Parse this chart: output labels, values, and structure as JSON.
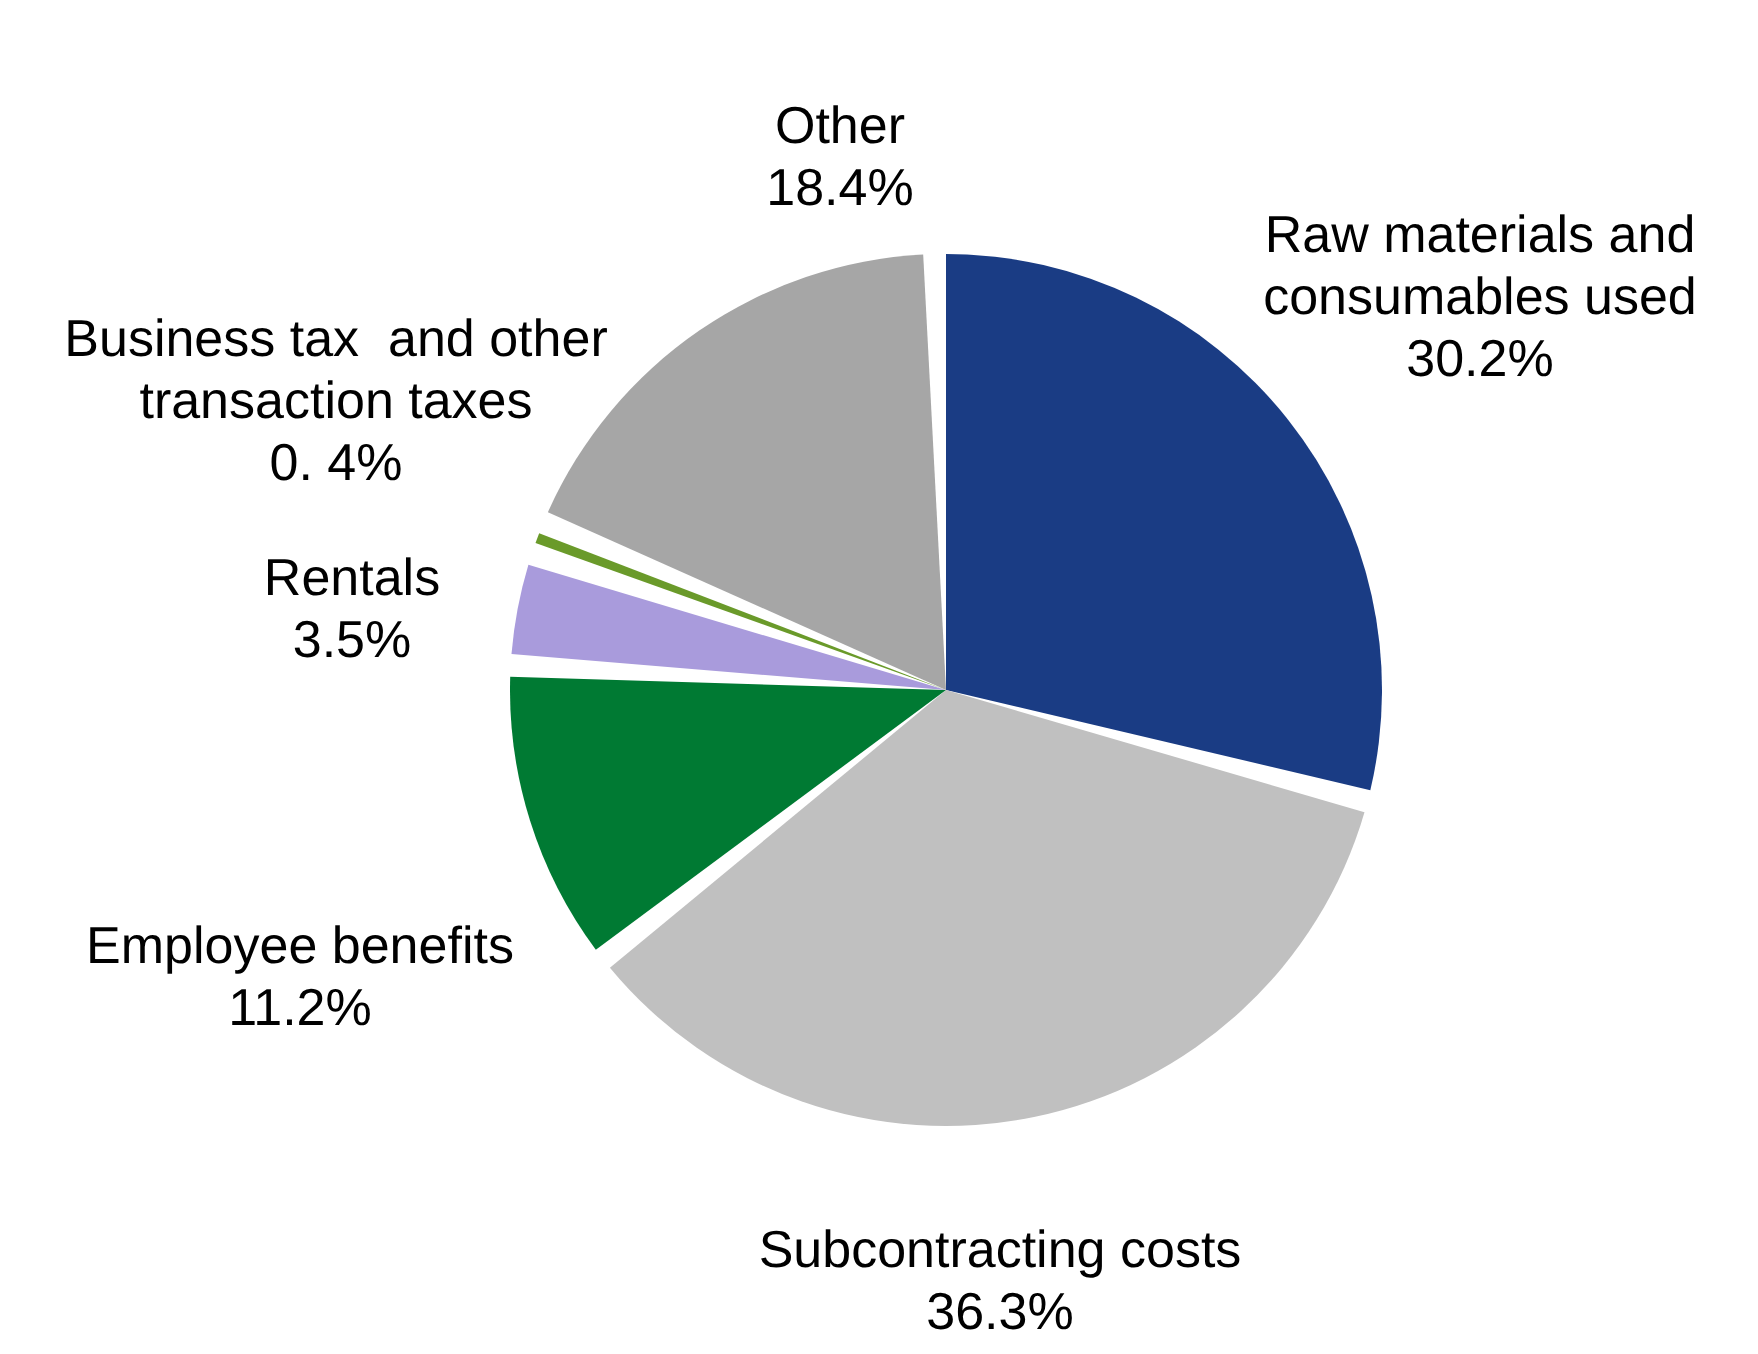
{
  "chart_data": {
    "type": "pie",
    "categories": [
      "Raw materials and consumables used",
      "Subcontracting costs",
      "Employee benefits",
      "Rentals",
      "Business tax  and other transaction taxes",
      "Other"
    ],
    "values": [
      30.2,
      36.3,
      11.2,
      3.5,
      0.4,
      18.4
    ],
    "colors": [
      "#1a3c84",
      "#c0c0c0",
      "#007a33",
      "#a99bdc",
      "#6a9a2a",
      "#a6a6a6"
    ],
    "value_labels": [
      "30.2%",
      "36.3%",
      "11.2%",
      "3.5%",
      "0. 4%",
      "18.4%"
    ],
    "legend": false
  }
}
